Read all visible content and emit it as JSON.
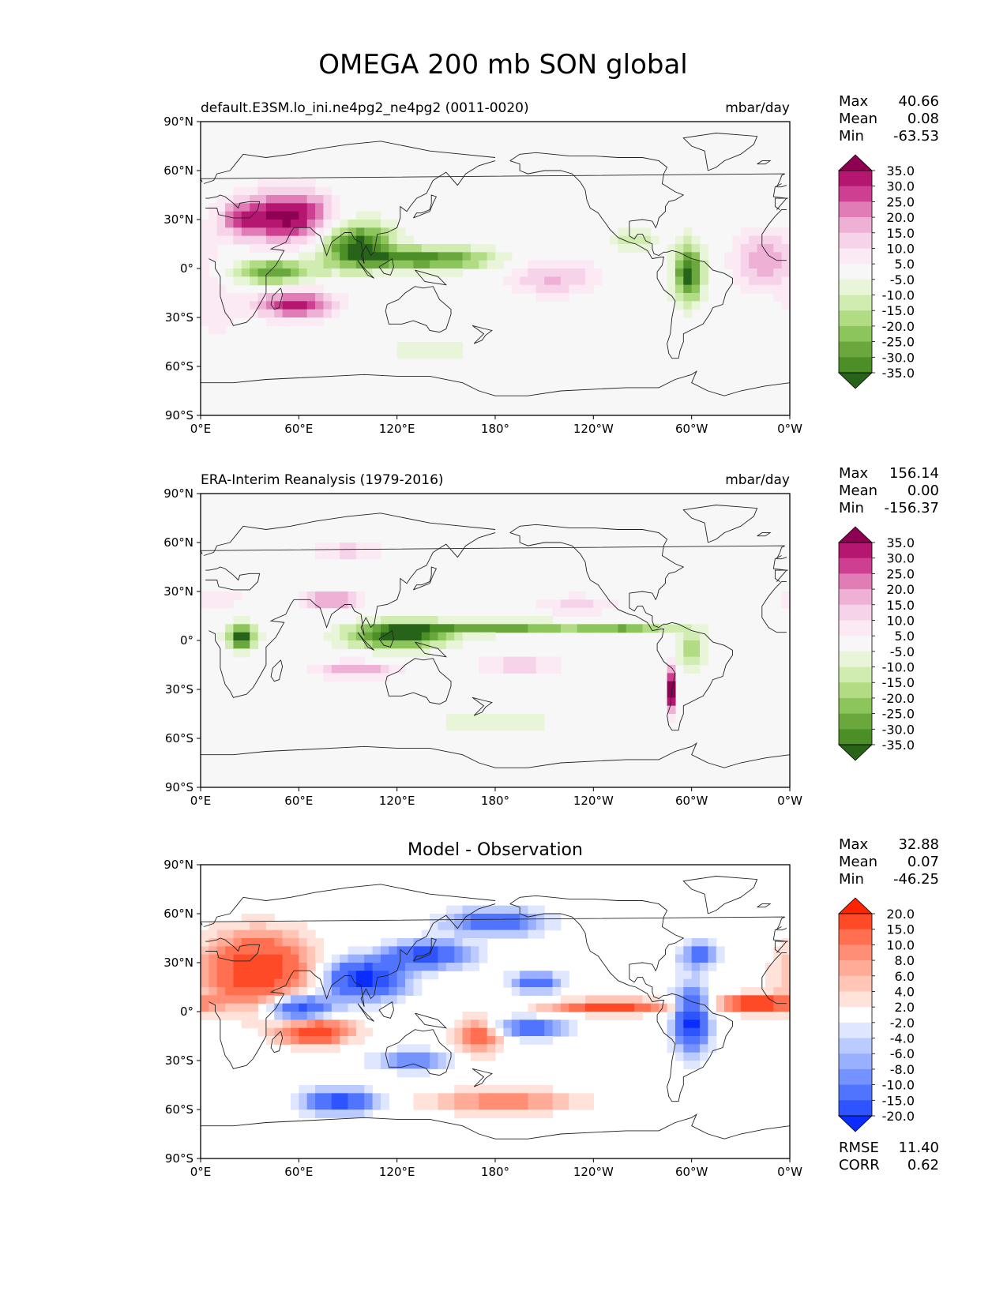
{
  "title": "OMEGA 200 mb SON global",
  "panels": [
    {
      "id": "test",
      "left_title": "default.E3SM.lo_ini.ne4pg2_ne4pg2 (0011-0020)",
      "right_title": "mbar/day",
      "center_title": "",
      "stats": [
        [
          "Max",
          "40.66"
        ],
        [
          "Mean",
          "0.08"
        ],
        [
          "Min",
          "-63.53"
        ]
      ],
      "extra_stats": [],
      "cmap": "pg",
      "levels": [
        "35.0",
        "30.0",
        "25.0",
        "20.0",
        "15.0",
        "10.0",
        "5.0",
        "-5.0",
        "-10.0",
        "-15.0",
        "-20.0",
        "-25.0",
        "-30.0",
        "-35.0"
      ]
    },
    {
      "id": "ref",
      "left_title": "ERA-Interim Reanalysis (1979-2016)",
      "right_title": "mbar/day",
      "center_title": "",
      "stats": [
        [
          "Max",
          "156.14"
        ],
        [
          "Mean",
          "0.00"
        ],
        [
          "Min",
          "-156.37"
        ]
      ],
      "extra_stats": [],
      "cmap": "pg",
      "levels": [
        "35.0",
        "30.0",
        "25.0",
        "20.0",
        "15.0",
        "10.0",
        "5.0",
        "-5.0",
        "-10.0",
        "-15.0",
        "-20.0",
        "-25.0",
        "-30.0",
        "-35.0"
      ]
    },
    {
      "id": "diff",
      "left_title": "",
      "right_title": "",
      "center_title": "Model - Observation",
      "stats": [
        [
          "Max",
          "32.88"
        ],
        [
          "Mean",
          "0.07"
        ],
        [
          "Min",
          "-46.25"
        ]
      ],
      "extra_stats": [
        [
          "RMSE",
          "11.40"
        ],
        [
          "CORR",
          "0.62"
        ]
      ],
      "cmap": "bwr",
      "levels": [
        "20.0",
        "15.0",
        "10.0",
        "8.0",
        "6.0",
        "4.0",
        "2.0",
        "-2.0",
        "-4.0",
        "-6.0",
        "-8.0",
        "-10.0",
        "-15.0",
        "-20.0"
      ]
    }
  ],
  "axes": {
    "x_ticks": [
      "0°E",
      "60°E",
      "120°E",
      "180°",
      "120°W",
      "60°W",
      "0°W"
    ],
    "y_ticks": [
      "90°N",
      "60°N",
      "30°N",
      "0°",
      "30°S",
      "60°S",
      "90°S"
    ]
  },
  "colors": {
    "pg": [
      "#8e0152",
      "#b41670",
      "#cf3f91",
      "#e17db6",
      "#efb0d6",
      "#f7d3ea",
      "#fbe9f3",
      "#f7f7f7",
      "#e9f5d9",
      "#d0ecb0",
      "#b1dc84",
      "#8dc55d",
      "#6aa83d",
      "#4d8f27",
      "#276419"
    ],
    "bwr": [
      "#ff2400",
      "#ff4a28",
      "#ff6f50",
      "#ff8e74",
      "#ffab97",
      "#ffc6b8",
      "#ffe3db",
      "#ffffff",
      "#dfe6ff",
      "#bccbff",
      "#99afff",
      "#7593ff",
      "#5174ff",
      "#2d54ff",
      "#0a2cff"
    ]
  },
  "chart_data": [
    {
      "type": "heatmap",
      "title": "default.E3SM.lo_ini.ne4pg2_ne4pg2 (0011-0020)",
      "units": "mbar/day",
      "x": [
        0,
        60,
        120,
        180,
        240,
        300,
        360
      ],
      "y": [
        90,
        60,
        30,
        0,
        -30,
        -60,
        -90
      ],
      "xlim": [
        0,
        360
      ],
      "ylim": [
        -90,
        90
      ],
      "blobs": [
        {
          "lon": 55,
          "lat": 32,
          "rlon": 26,
          "rlat": 16,
          "value": 38
        },
        {
          "lon": 25,
          "lat": 30,
          "rlon": 16,
          "rlat": 12,
          "value": 20
        },
        {
          "lon": 58,
          "lat": -22,
          "rlon": 24,
          "rlat": 9,
          "value": 32
        },
        {
          "lon": 95,
          "lat": 15,
          "rlon": 22,
          "rlat": 14,
          "value": -38
        },
        {
          "lon": 45,
          "lat": -2,
          "rlon": 25,
          "rlat": 8,
          "value": -30
        },
        {
          "lon": 140,
          "lat": 6,
          "rlon": 42,
          "rlat": 7,
          "value": -32
        },
        {
          "lon": 298,
          "lat": -3,
          "rlon": 9,
          "rlat": 18,
          "value": -38
        },
        {
          "lon": 265,
          "lat": 18,
          "rlon": 14,
          "rlat": 7,
          "value": -15
        },
        {
          "lon": 215,
          "lat": -5,
          "rlon": 30,
          "rlat": 12,
          "value": 16
        },
        {
          "lon": 345,
          "lat": 5,
          "rlon": 20,
          "rlat": 18,
          "value": 20
        },
        {
          "lon": 140,
          "lat": -50,
          "rlon": 25,
          "rlat": 6,
          "value": -12
        },
        {
          "lon": 10,
          "lat": -25,
          "rlon": 15,
          "rlat": 20,
          "value": 8
        }
      ]
    },
    {
      "type": "heatmap",
      "title": "ERA-Interim Reanalysis (1979-2016)",
      "units": "mbar/day",
      "x": [
        0,
        60,
        120,
        180,
        240,
        300,
        360
      ],
      "y": [
        90,
        60,
        30,
        0,
        -30,
        -60,
        -90
      ],
      "xlim": [
        0,
        360
      ],
      "ylim": [
        -90,
        90
      ],
      "blobs": [
        {
          "lon": 25,
          "lat": 2,
          "rlon": 9,
          "rlat": 8,
          "value": -40
        },
        {
          "lon": 120,
          "lat": 3,
          "rlon": 30,
          "rlat": 8,
          "value": -40
        },
        {
          "lon": 180,
          "lat": 8,
          "rlon": 55,
          "rlat": 4,
          "value": -28
        },
        {
          "lon": 260,
          "lat": 8,
          "rlon": 30,
          "rlat": 3,
          "value": -22
        },
        {
          "lon": 300,
          "lat": -5,
          "rlon": 10,
          "rlat": 12,
          "value": -18
        },
        {
          "lon": 80,
          "lat": 25,
          "rlon": 18,
          "rlat": 6,
          "value": 22
        },
        {
          "lon": 95,
          "lat": -18,
          "rlon": 25,
          "rlat": 5,
          "value": 20
        },
        {
          "lon": 195,
          "lat": -15,
          "rlon": 25,
          "rlat": 6,
          "value": 15
        },
        {
          "lon": 288,
          "lat": -30,
          "rlon": 3,
          "rlat": 15,
          "value": 40
        },
        {
          "lon": 10,
          "lat": 25,
          "rlon": 15,
          "rlat": 6,
          "value": 12
        },
        {
          "lon": 230,
          "lat": 22,
          "rlon": 25,
          "rlat": 6,
          "value": 12
        },
        {
          "lon": 180,
          "lat": -50,
          "rlon": 40,
          "rlat": 5,
          "value": -12
        },
        {
          "lon": 90,
          "lat": 55,
          "rlon": 20,
          "rlat": 8,
          "value": 12
        }
      ]
    },
    {
      "type": "heatmap",
      "title": "Model - Observation",
      "units": "mbar/day",
      "x": [
        0,
        60,
        120,
        180,
        240,
        300,
        360
      ],
      "y": [
        90,
        60,
        30,
        0,
        -30,
        -60,
        -90
      ],
      "xlim": [
        0,
        360
      ],
      "ylim": [
        -90,
        90
      ],
      "blobs": [
        {
          "lon": 35,
          "lat": 25,
          "rlon": 32,
          "rlat": 22,
          "value": 20
        },
        {
          "lon": 70,
          "lat": -12,
          "rlon": 22,
          "rlat": 8,
          "value": 18
        },
        {
          "lon": 100,
          "lat": 20,
          "rlon": 24,
          "rlat": 12,
          "value": -22
        },
        {
          "lon": 60,
          "lat": 2,
          "rlon": 20,
          "rlat": 8,
          "value": -20
        },
        {
          "lon": 140,
          "lat": 35,
          "rlon": 24,
          "rlat": 8,
          "value": -18
        },
        {
          "lon": 205,
          "lat": 18,
          "rlon": 15,
          "rlat": 6,
          "value": -14
        },
        {
          "lon": 250,
          "lat": 3,
          "rlon": 36,
          "rlat": 4,
          "value": 18
        },
        {
          "lon": 340,
          "lat": 5,
          "rlon": 22,
          "rlat": 5,
          "value": 22
        },
        {
          "lon": 300,
          "lat": -5,
          "rlon": 10,
          "rlat": 20,
          "value": -22
        },
        {
          "lon": 200,
          "lat": -10,
          "rlon": 22,
          "rlat": 6,
          "value": -14
        },
        {
          "lon": 170,
          "lat": -15,
          "rlon": 14,
          "rlat": 10,
          "value": 14
        },
        {
          "lon": 130,
          "lat": -30,
          "rlon": 22,
          "rlat": 6,
          "value": -12
        },
        {
          "lon": 85,
          "lat": -55,
          "rlon": 22,
          "rlat": 7,
          "value": -18
        },
        {
          "lon": 180,
          "lat": 55,
          "rlon": 30,
          "rlat": 8,
          "value": -14
        },
        {
          "lon": 185,
          "lat": -55,
          "rlon": 45,
          "rlat": 7,
          "value": 10
        },
        {
          "lon": 305,
          "lat": 35,
          "rlon": 12,
          "rlat": 8,
          "value": -12
        }
      ]
    }
  ]
}
